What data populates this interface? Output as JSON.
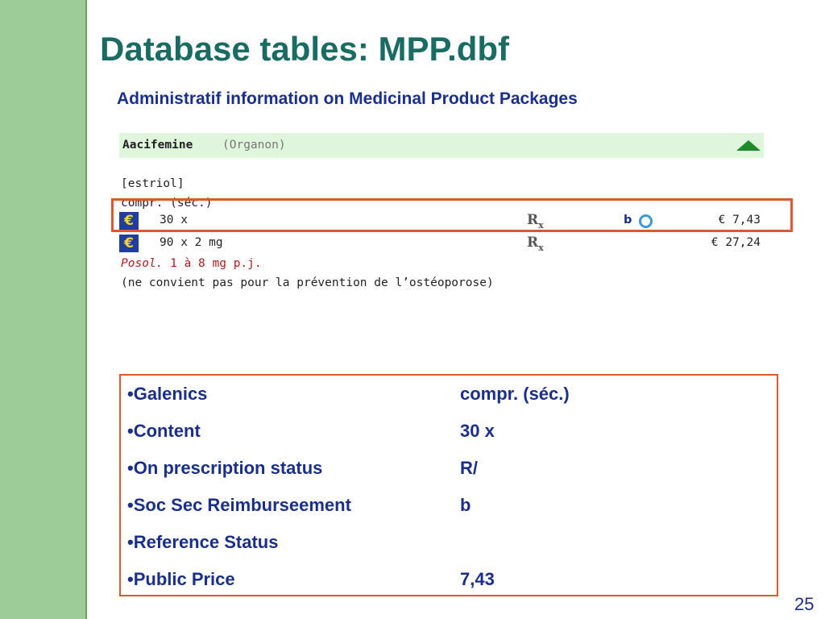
{
  "slide": {
    "title": "Database tables: MPP.dbf",
    "subtitle": "Administratif information on Medicinal Product Packages",
    "number": "25"
  },
  "listing": {
    "product_name": "Aacifemine",
    "company": "(Organon)",
    "ingredient": "[estriol]",
    "galenic": "compr. (séc.)",
    "packages": [
      {
        "size": "30 x",
        "rx_symbol": "R",
        "rx_sub": "x",
        "reimbursement": "b",
        "price": "€ 7,43"
      },
      {
        "size": "90 x 2 mg",
        "rx_symbol": "R",
        "rx_sub": "x",
        "reimbursement": "",
        "price": "€ 27,24"
      }
    ],
    "posology_label": "Posol.",
    "posology_value": " 1 à 8 mg p.j.",
    "note": "(ne convient pas pour la prévention de l’ostéoporose)"
  },
  "details": [
    {
      "label": "•Galenics",
      "value": "compr. (séc.)"
    },
    {
      "label": "•Content",
      "value": "30 x"
    },
    {
      "label": "•On prescription status",
      "value": "R/"
    },
    {
      "label": "•Soc Sec Reimburseement",
      "value": "b"
    },
    {
      "label": "•Reference Status",
      "value": ""
    },
    {
      "label": "•Public Price",
      "value": "7,43"
    }
  ],
  "colors": {
    "title": "#1a6b63",
    "text": "#1a2f8a",
    "highlight": "#e0572f",
    "sidebar": "#9dcc99"
  }
}
